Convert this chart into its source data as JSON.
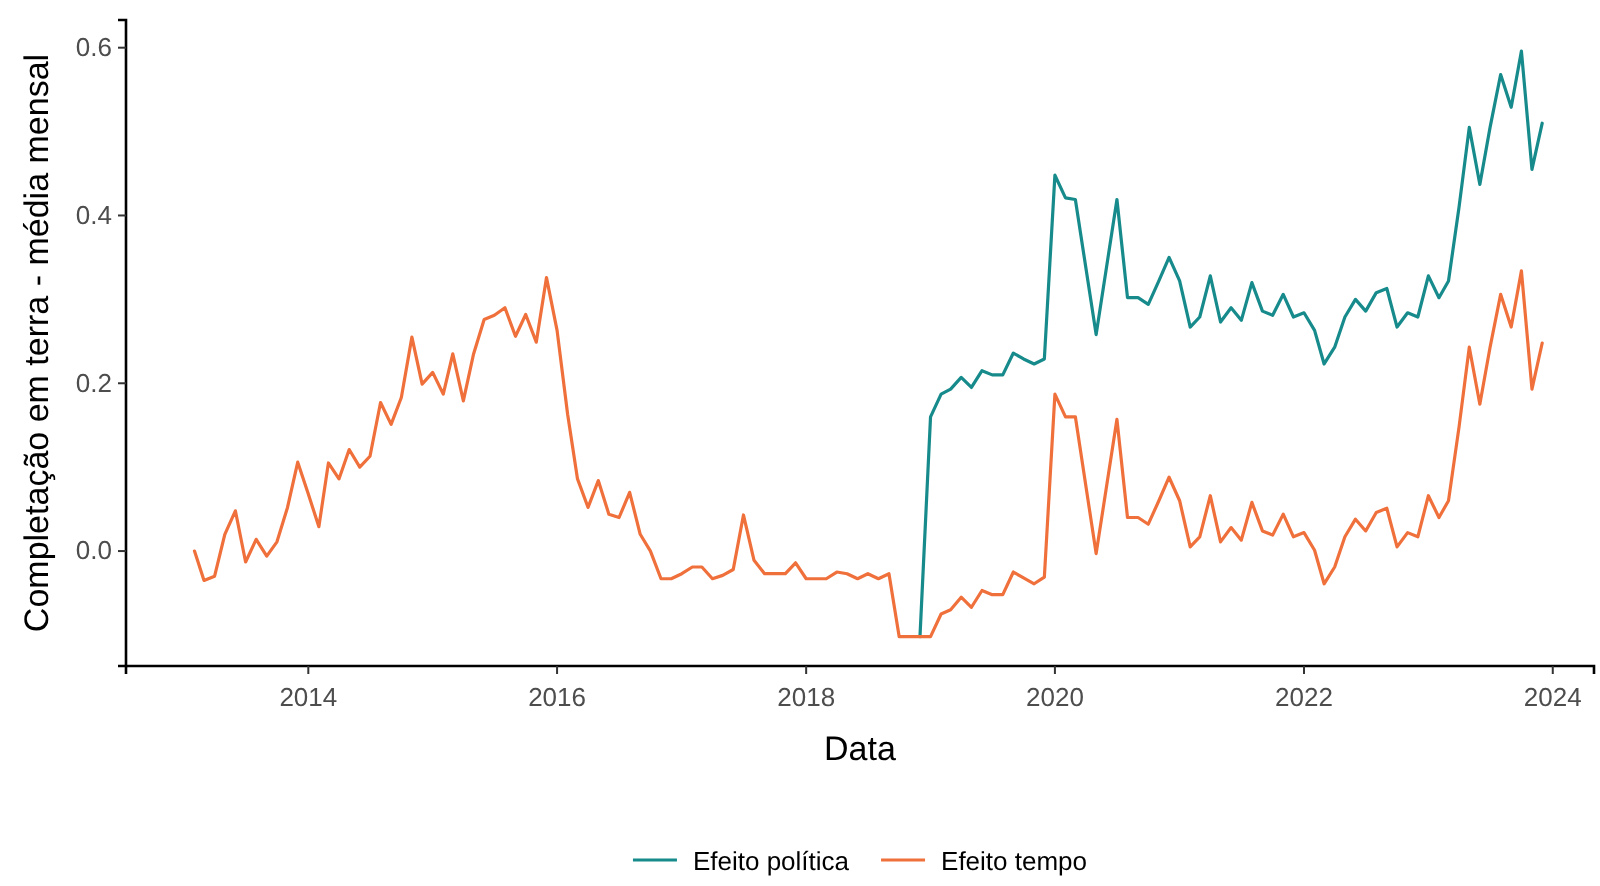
{
  "chart_data": {
    "type": "line",
    "xlabel": "Data",
    "ylabel": "Completação em terra - média mensal",
    "xlim": [
      "2012-07-15",
      "2024-05-01"
    ],
    "xticks": [
      "2014",
      "2016",
      "2018",
      "2020",
      "2022",
      "2024"
    ],
    "ylim": [
      -0.137,
      0.633
    ],
    "yticks": [
      {
        "value": 0,
        "label": "0.0"
      },
      0.2,
      0.4,
      0.6
    ],
    "grid": false,
    "legend": "bottom",
    "marker": "none",
    "line_style": "solid",
    "series": [
      {
        "name": "Efeito política",
        "color": "#178b8c",
        "x": [
          "2018-12",
          "2019-01",
          "2019-02",
          "2019-03",
          "2019-04",
          "2019-05",
          "2019-06",
          "2019-07",
          "2019-08",
          "2019-09",
          "2019-10",
          "2019-11",
          "2019-12",
          "2020-01",
          "2020-02",
          "2020-03",
          "2020-05",
          "2020-07",
          "2020-08",
          "2020-09",
          "2020-10",
          "2020-11",
          "2020-12",
          "2021-01",
          "2021-02",
          "2021-03",
          "2021-04",
          "2021-05",
          "2021-06",
          "2021-07",
          "2021-08",
          "2021-09",
          "2021-10",
          "2021-11",
          "2021-12",
          "2022-01",
          "2022-02",
          "2022-03",
          "2022-04",
          "2022-05",
          "2022-06",
          "2022-07",
          "2022-08",
          "2022-09",
          "2022-10",
          "2022-11",
          "2022-12",
          "2023-01",
          "2023-02",
          "2023-03",
          "2023-04",
          "2023-05",
          "2023-06",
          "2023-07",
          "2023-08",
          "2023-09",
          "2023-10",
          "2023-11",
          "2023-12"
        ],
        "values": [
          -0.102,
          0.16,
          0.187,
          0.193,
          0.207,
          0.195,
          0.215,
          0.21,
          0.21,
          0.236,
          0.229,
          0.223,
          0.229,
          0.448,
          0.421,
          0.419,
          0.258,
          0.419,
          0.302,
          0.302,
          0.294,
          0.322,
          0.35,
          0.322,
          0.267,
          0.279,
          0.328,
          0.273,
          0.29,
          0.275,
          0.32,
          0.286,
          0.281,
          0.306,
          0.279,
          0.284,
          0.263,
          0.223,
          0.243,
          0.279,
          0.3,
          0.286,
          0.308,
          0.313,
          0.267,
          0.284,
          0.279,
          0.328,
          0.302,
          0.322,
          0.41,
          0.505,
          0.437,
          0.505,
          0.568,
          0.529,
          0.596,
          0.455,
          0.51
        ]
      },
      {
        "name": "Efeito tempo",
        "color": "#f0703c",
        "x": [
          "2013-02",
          "2013-03",
          "2013-04",
          "2013-05",
          "2013-06",
          "2013-07",
          "2013-08",
          "2013-09",
          "2013-10",
          "2013-11",
          "2013-12",
          "2014-01",
          "2014-02",
          "2014-03",
          "2014-04",
          "2014-05",
          "2014-06",
          "2014-07",
          "2014-08",
          "2014-09",
          "2014-10",
          "2014-11",
          "2014-12",
          "2015-01",
          "2015-02",
          "2015-03",
          "2015-04",
          "2015-05",
          "2015-06",
          "2015-07",
          "2015-08",
          "2015-09",
          "2015-10",
          "2015-11",
          "2015-12",
          "2016-01",
          "2016-02",
          "2016-03",
          "2016-04",
          "2016-05",
          "2016-06",
          "2016-07",
          "2016-08",
          "2016-09",
          "2016-10",
          "2016-11",
          "2016-12",
          "2017-01",
          "2017-02",
          "2017-03",
          "2017-04",
          "2017-05",
          "2017-06",
          "2017-07",
          "2017-08",
          "2017-09",
          "2017-10",
          "2017-11",
          "2017-12",
          "2018-01",
          "2018-02",
          "2018-03",
          "2018-04",
          "2018-05",
          "2018-06",
          "2018-07",
          "2018-08",
          "2018-09",
          "2018-10",
          "2019-01",
          "2019-02",
          "2019-03",
          "2019-04",
          "2019-05",
          "2019-06",
          "2019-07",
          "2019-08",
          "2019-09",
          "2019-10",
          "2019-11",
          "2019-12",
          "2020-01",
          "2020-02",
          "2020-03",
          "2020-05",
          "2020-07",
          "2020-08",
          "2020-09",
          "2020-10",
          "2020-11",
          "2020-12",
          "2021-01",
          "2021-02",
          "2021-03",
          "2021-04",
          "2021-05",
          "2021-06",
          "2021-07",
          "2021-08",
          "2021-09",
          "2021-10",
          "2021-11",
          "2021-12",
          "2022-01",
          "2022-02",
          "2022-03",
          "2022-04",
          "2022-05",
          "2022-06",
          "2022-07",
          "2022-08",
          "2022-09",
          "2022-10",
          "2022-11",
          "2022-12",
          "2023-01",
          "2023-02",
          "2023-03",
          "2023-04",
          "2023-05",
          "2023-06",
          "2023-07",
          "2023-08",
          "2023-09",
          "2023-10",
          "2023-11",
          "2023-12"
        ],
        "values": [
          0.0,
          -0.035,
          -0.03,
          0.02,
          0.048,
          -0.013,
          0.014,
          -0.006,
          0.011,
          0.052,
          0.106,
          0.068,
          0.029,
          0.105,
          0.086,
          0.121,
          0.1,
          0.113,
          0.177,
          0.151,
          0.183,
          0.255,
          0.199,
          0.213,
          0.187,
          0.235,
          0.179,
          0.235,
          0.276,
          0.281,
          0.29,
          0.256,
          0.282,
          0.249,
          0.326,
          0.263,
          0.163,
          0.086,
          0.052,
          0.084,
          0.044,
          0.04,
          0.07,
          0.02,
          0.0,
          -0.033,
          -0.033,
          -0.027,
          -0.019,
          -0.019,
          -0.033,
          -0.029,
          -0.022,
          0.043,
          -0.011,
          -0.027,
          -0.027,
          -0.027,
          -0.014,
          -0.033,
          -0.033,
          -0.033,
          -0.025,
          -0.027,
          -0.033,
          -0.027,
          -0.033,
          -0.027,
          -0.102,
          -0.102,
          -0.075,
          -0.07,
          -0.055,
          -0.067,
          -0.047,
          -0.052,
          -0.052,
          -0.025,
          -0.032,
          -0.039,
          -0.031,
          0.187,
          0.16,
          0.16,
          -0.003,
          0.157,
          0.04,
          0.04,
          0.032,
          0.06,
          0.088,
          0.06,
          0.005,
          0.017,
          0.066,
          0.011,
          0.028,
          0.013,
          0.058,
          0.024,
          0.019,
          0.044,
          0.017,
          0.022,
          0.001,
          -0.039,
          -0.019,
          0.017,
          0.038,
          0.024,
          0.046,
          0.051,
          0.005,
          0.022,
          0.017,
          0.066,
          0.04,
          0.06,
          0.148,
          0.243,
          0.175,
          0.243,
          0.306,
          0.267,
          0.334,
          0.193,
          0.248
        ]
      }
    ]
  }
}
